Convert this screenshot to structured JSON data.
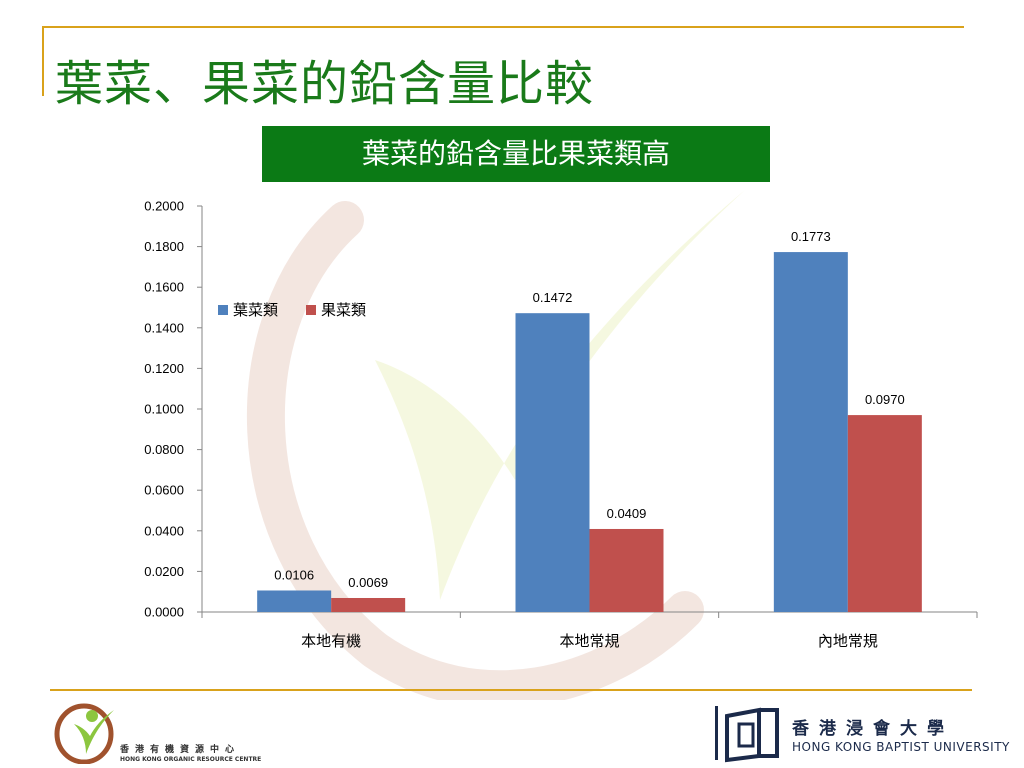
{
  "slide": {
    "title": "葉菜、果菜的鉛含量比較",
    "banner": "葉菜的鉛含量比果菜類高"
  },
  "colors": {
    "series_leafy": "#4f81bd",
    "series_fruit": "#c0504d",
    "title_green": "#1a7a1a",
    "banner_green": "#0b7a15",
    "rule_gold": "#d9a21b"
  },
  "chart_data": {
    "type": "bar",
    "categories": [
      "本地有機",
      "本地常規",
      "內地常規"
    ],
    "series": [
      {
        "name": "葉菜類",
        "values": [
          0.0106,
          0.1472,
          0.1773
        ],
        "labels": [
          "0.0106",
          "0.1472",
          "0.1773"
        ]
      },
      {
        "name": "果菜類",
        "values": [
          0.0069,
          0.0409,
          0.097
        ],
        "labels": [
          "0.0069",
          "0.0409",
          "0.0970"
        ]
      }
    ],
    "ylim": [
      0,
      0.2
    ],
    "yticks": [
      "0.0000",
      "0.0200",
      "0.0400",
      "0.0600",
      "0.0800",
      "0.1000",
      "0.1200",
      "0.1400",
      "0.1600",
      "0.1800",
      "0.2000"
    ],
    "legend": "top-left",
    "grid": false
  },
  "footer": {
    "left_logo": {
      "cn": "香港有機資源中心",
      "en": "HONG KONG ORGANIC RESOURCE CENTRE"
    },
    "right_logo": {
      "cn": "香港浸會大學",
      "en": "HONG KONG BAPTIST UNIVERSITY"
    }
  }
}
